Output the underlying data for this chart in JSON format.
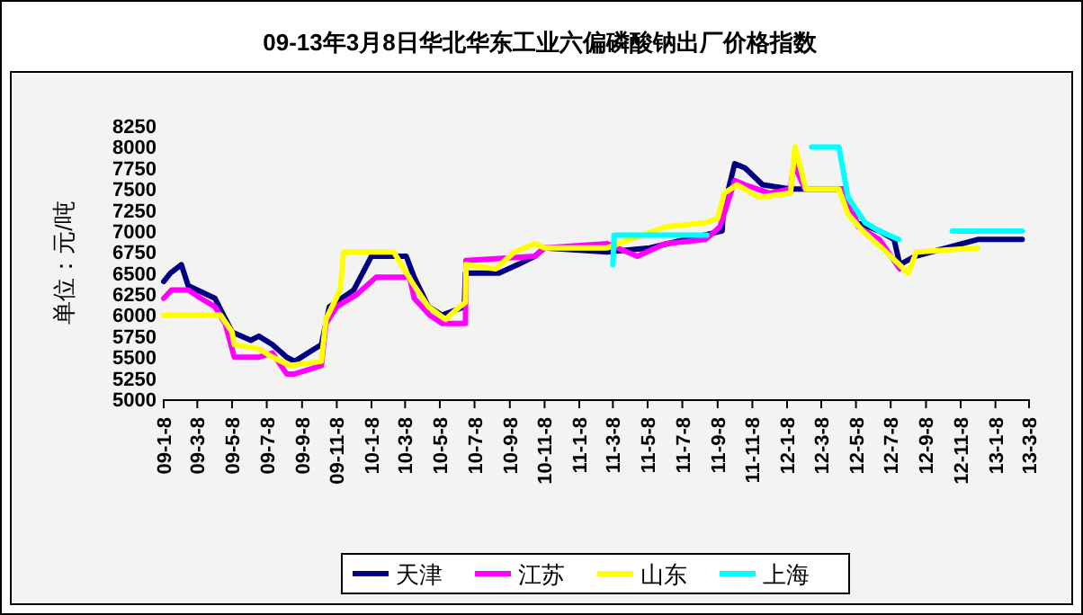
{
  "chart_data": {
    "type": "line",
    "title": "09-13年3月8日华北华东工业六偏磷酸钠出厂价格指数",
    "ylabel": "单位：元/吨",
    "xlim": [
      "2009-01-08",
      "2013-03-08"
    ],
    "xticks": [
      {
        "value": "2009-01-08",
        "label": "09-1-8"
      },
      {
        "value": "2009-03-08",
        "label": "09-3-8"
      },
      {
        "value": "2009-05-08",
        "label": "09-5-8"
      },
      {
        "value": "2009-07-08",
        "label": "09-7-8"
      },
      {
        "value": "2009-09-08",
        "label": "09-9-8"
      },
      {
        "value": "2009-11-08",
        "label": "09-11-8"
      },
      {
        "value": "2010-01-08",
        "label": "10-1-8"
      },
      {
        "value": "2010-03-08",
        "label": "10-3-8"
      },
      {
        "value": "2010-05-08",
        "label": "10-5-8"
      },
      {
        "value": "2010-07-08",
        "label": "10-7-8"
      },
      {
        "value": "2010-09-08",
        "label": "10-9-8"
      },
      {
        "value": "2010-11-08",
        "label": "10-11-8"
      },
      {
        "value": "2011-01-08",
        "label": "11-1-8"
      },
      {
        "value": "2011-03-08",
        "label": "11-3-8"
      },
      {
        "value": "2011-05-08",
        "label": "11-5-8"
      },
      {
        "value": "2011-07-08",
        "label": "11-7-8"
      },
      {
        "value": "2011-09-08",
        "label": "11-9-8"
      },
      {
        "value": "2011-11-08",
        "label": "11-11-8"
      },
      {
        "value": "2012-01-08",
        "label": "12-1-8"
      },
      {
        "value": "2012-03-08",
        "label": "12-3-8"
      },
      {
        "value": "2012-05-08",
        "label": "12-5-8"
      },
      {
        "value": "2012-07-08",
        "label": "12-7-8"
      },
      {
        "value": "2012-09-08",
        "label": "12-9-8"
      },
      {
        "value": "2012-11-08",
        "label": "12-11-8"
      },
      {
        "value": "2013-01-08",
        "label": "13-1-8"
      },
      {
        "value": "2013-03-08",
        "label": "13-3-8"
      }
    ],
    "ylim": [
      5000,
      8250
    ],
    "yticks": [
      5000,
      5250,
      5500,
      5750,
      6000,
      6250,
      6500,
      6750,
      7000,
      7250,
      7500,
      7750,
      8000,
      8250
    ],
    "grid": false,
    "legend": "bottom",
    "marker": "none",
    "line_style": "solid",
    "series": [
      {
        "name": "天津",
        "color": "#000080",
        "x": [
          "2009-01-08",
          "2009-01-20",
          "2009-02-08",
          "2009-02-20",
          "2009-04-08",
          "2009-05-08",
          "2009-06-10",
          "2009-06-24",
          "2009-07-18",
          "2009-08-12",
          "2009-08-26",
          "2009-10-12",
          "2009-10-26",
          "2009-12-08",
          "2010-01-08",
          "2010-02-08",
          "2010-03-10",
          "2010-03-24",
          "2010-04-18",
          "2010-05-12",
          "2010-06-20",
          "2010-06-22",
          "2010-08-20",
          "2010-09-22",
          "2010-10-22",
          "2010-11-08",
          "2011-02-26",
          "2011-05-12",
          "2011-07-14",
          "2011-09-16",
          "2011-09-18",
          "2011-10-08",
          "2011-10-26",
          "2011-11-26",
          "2012-01-14",
          "2012-02-08",
          "2012-04-16",
          "2012-05-10",
          "2012-06-18",
          "2012-07-14",
          "2012-07-24",
          "2012-08-20",
          "2012-12-08",
          "2013-02-24"
        ],
        "values": [
          6400,
          6500,
          6600,
          6350,
          6200,
          5800,
          5700,
          5750,
          5650,
          5500,
          5450,
          5650,
          6100,
          6300,
          6700,
          6700,
          6700,
          6450,
          6100,
          6000,
          6100,
          6500,
          6500,
          6600,
          6700,
          6800,
          6750,
          6800,
          6900,
          7000,
          7250,
          7800,
          7750,
          7550,
          7500,
          7500,
          7500,
          7100,
          7000,
          6900,
          6600,
          6700,
          6900,
          6900
        ]
      },
      {
        "name": "江苏",
        "color": "#ff00ff",
        "x": [
          "2009-01-08",
          "2009-01-22",
          "2009-02-20",
          "2009-03-14",
          "2009-04-08",
          "2009-04-26",
          "2009-05-12",
          "2009-06-24",
          "2009-07-18",
          "2009-08-12",
          "2009-08-26",
          "2009-10-12",
          "2009-10-20",
          "2009-11-08",
          "2009-12-14",
          "2010-01-16",
          "2010-03-16",
          "2010-03-24",
          "2010-04-20",
          "2010-05-12",
          "2010-06-22",
          "2010-06-23",
          "2010-10-22",
          "2010-11-08",
          "2011-02-26",
          "2011-04-20",
          "2011-06-08",
          "2011-08-18",
          "2011-09-12",
          "2011-10-08",
          "2011-10-26",
          "2011-12-08",
          "2012-01-14",
          "2012-01-20",
          "2012-02-08",
          "2012-04-18",
          "2012-05-12",
          "2012-06-18",
          "2012-07-24"
        ],
        "values": [
          6200,
          6300,
          6300,
          6200,
          6100,
          5900,
          5500,
          5500,
          5550,
          5300,
          5300,
          5400,
          5900,
          6100,
          6250,
          6450,
          6450,
          6200,
          6000,
          5900,
          5900,
          6650,
          6700,
          6800,
          6850,
          6700,
          6850,
          6900,
          7050,
          7600,
          7550,
          7450,
          7500,
          7800,
          7500,
          7500,
          7050,
          6900,
          6550
        ]
      },
      {
        "name": "山东",
        "color": "#ffff00",
        "x": [
          "2009-01-08",
          "2009-04-18",
          "2009-05-08",
          "2009-05-12",
          "2009-06-24",
          "2009-07-18",
          "2009-08-18",
          "2009-10-12",
          "2009-10-20",
          "2009-11-14",
          "2009-11-20",
          "2010-02-16",
          "2010-03-24",
          "2010-04-18",
          "2010-05-18",
          "2010-06-12",
          "2010-06-22",
          "2010-06-23",
          "2010-08-14",
          "2010-09-16",
          "2010-10-22",
          "2010-11-08",
          "2011-02-26",
          "2011-06-08",
          "2011-08-18",
          "2011-09-08",
          "2011-09-20",
          "2011-10-12",
          "2011-11-20",
          "2012-01-14",
          "2012-01-22",
          "2012-02-10",
          "2012-04-08",
          "2012-04-24",
          "2012-05-20",
          "2012-06-22",
          "2012-08-08",
          "2012-08-22",
          "2012-12-08"
        ],
        "values": [
          6000,
          6000,
          5800,
          5650,
          5600,
          5500,
          5400,
          5450,
          5950,
          6300,
          6750,
          6750,
          6350,
          6100,
          5950,
          6100,
          6150,
          6600,
          6550,
          6750,
          6850,
          6800,
          6800,
          7050,
          7100,
          7150,
          7450,
          7550,
          7400,
          7450,
          8000,
          7500,
          7500,
          7200,
          7000,
          6800,
          6500,
          6750,
          6800
        ]
      },
      {
        "name": "上海",
        "color": "#00ffff",
        "x": [
          "2011-03-08",
          "2011-03-10",
          "2011-08-20"
        ],
        "values": [
          6600,
          6950,
          6950
        ]
      },
      {
        "color": "#00ffff",
        "x": [
          "2012-02-20",
          "2012-04-08",
          "2012-04-24",
          "2012-05-24",
          "2012-06-18",
          "2012-07-22"
        ],
        "values": [
          8000,
          8000,
          7400,
          7100,
          7000,
          6900
        ]
      },
      {
        "color": "#00ffff",
        "x": [
          "2012-10-24",
          "2013-02-24"
        ],
        "values": [
          7000,
          7000
        ]
      }
    ]
  }
}
